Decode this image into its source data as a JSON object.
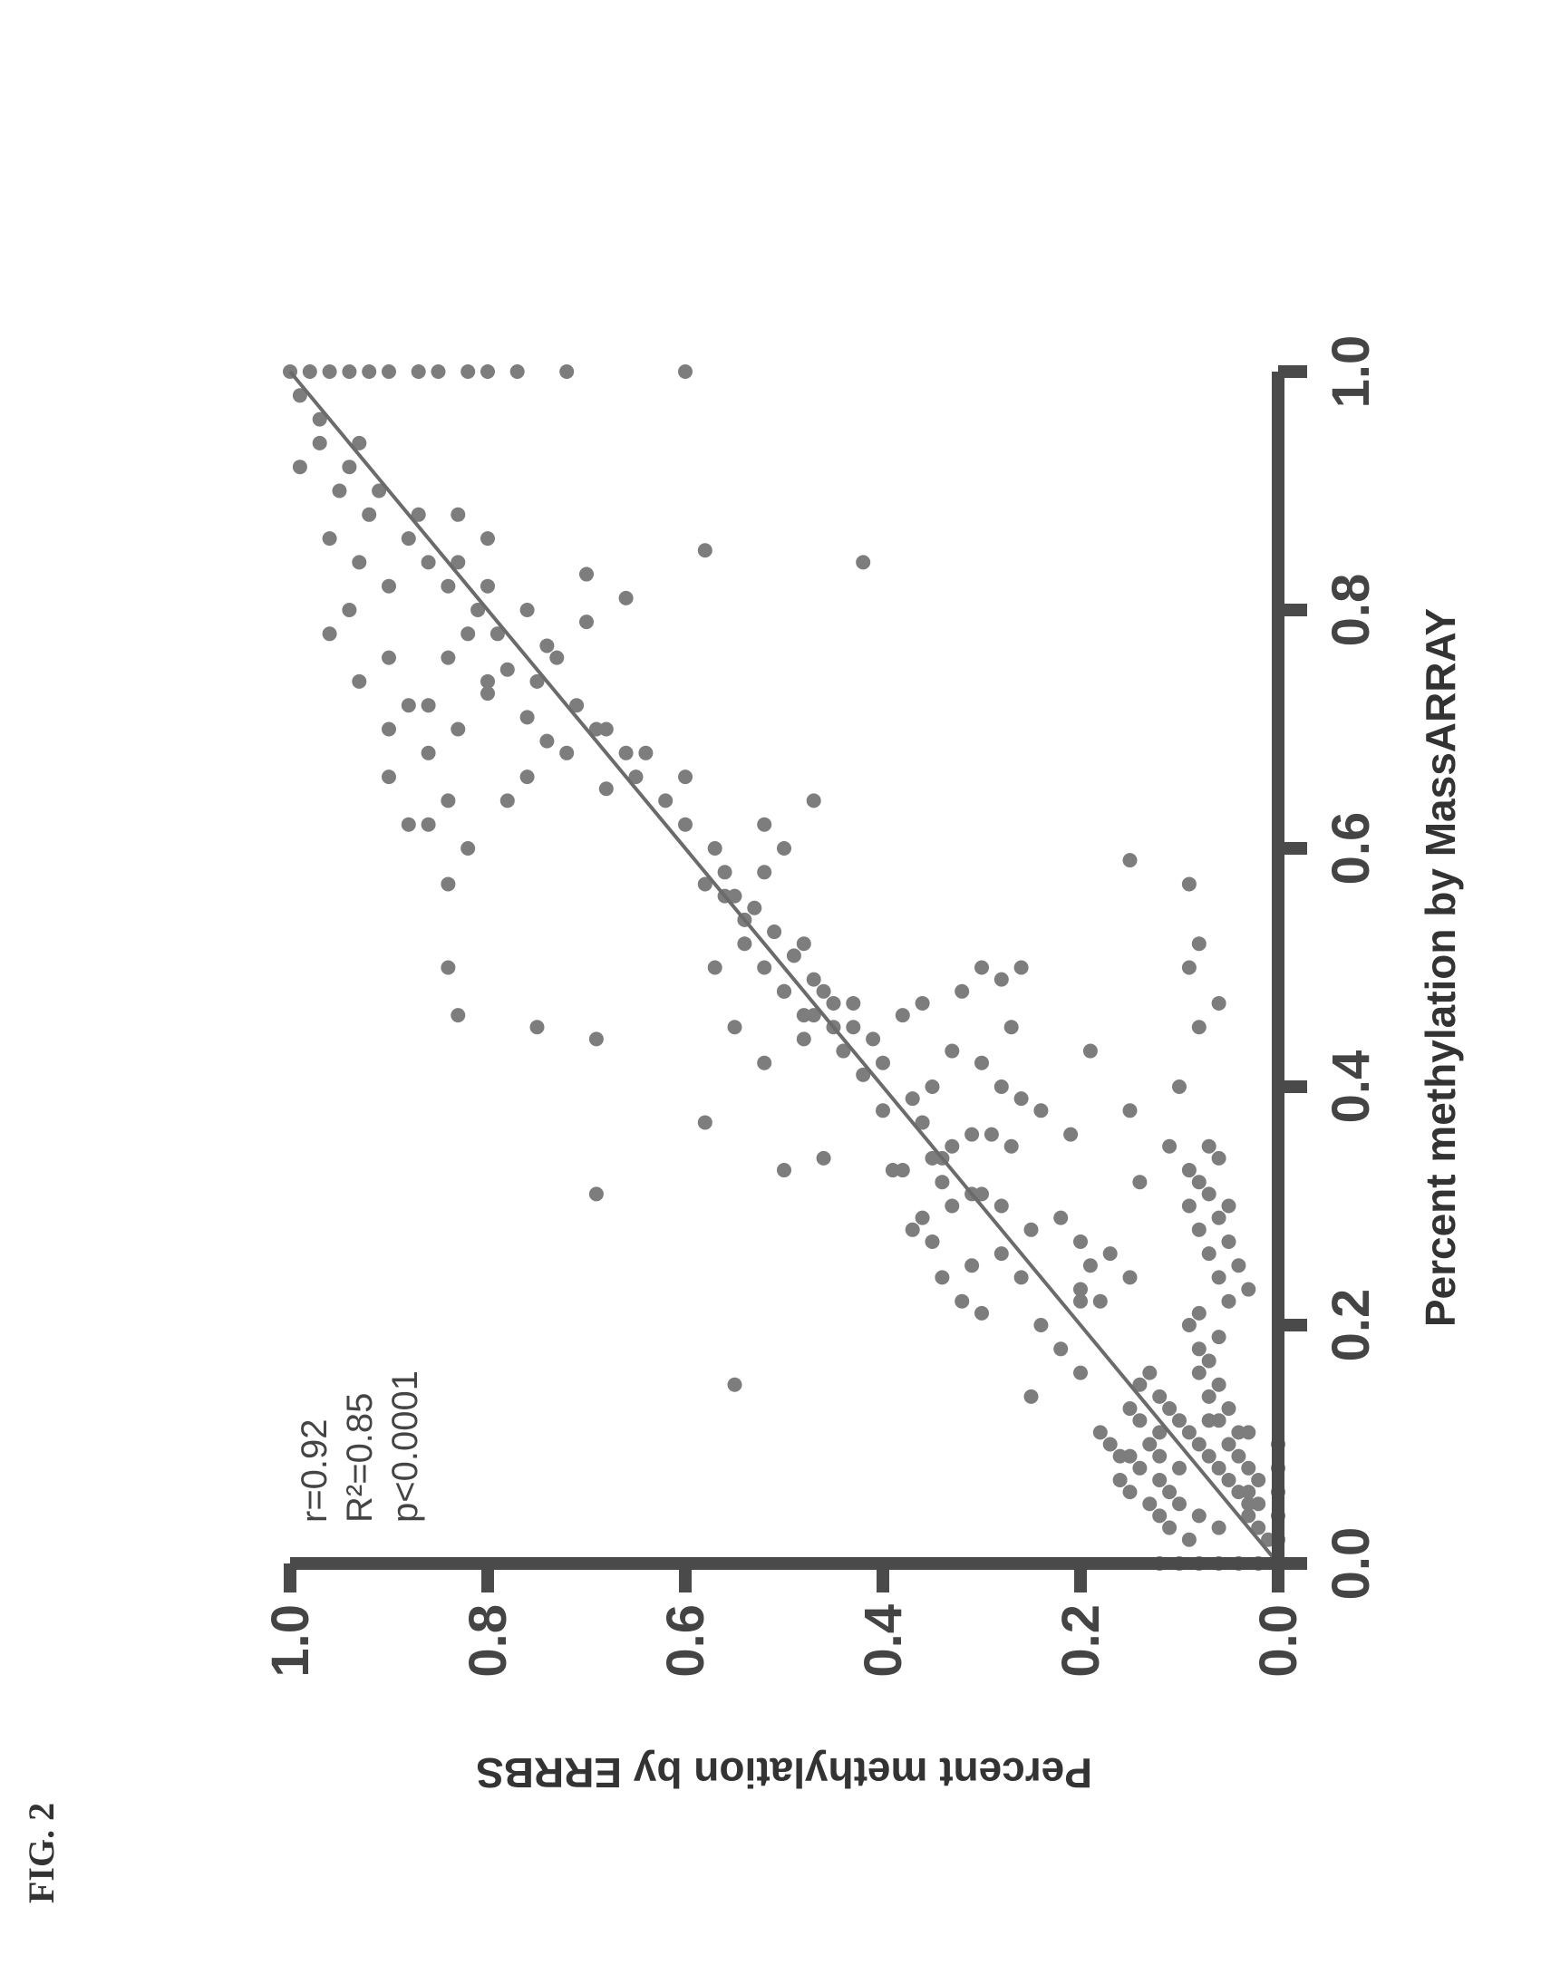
{
  "figure_label": "FIG. 2",
  "chart_data": {
    "type": "scatter",
    "xlabel": "Percent methylation by MassARRAY",
    "ylabel": "Percent methylation by ERRBS",
    "xlim": [
      0.0,
      1.0
    ],
    "ylim": [
      0.0,
      1.0
    ],
    "xticks": [
      "0.0",
      "0.2",
      "0.4",
      "0.6",
      "0.8",
      "1.0"
    ],
    "yticks": [
      "0.0",
      "0.2",
      "0.4",
      "0.6",
      "0.8",
      "1.0"
    ],
    "grid": false,
    "annotations": [
      "r=0.92",
      "R²=0.85",
      "p<0.0001"
    ],
    "fit_line": {
      "x": [
        0.0,
        1.0
      ],
      "y": [
        0.0,
        1.0
      ]
    },
    "points": [
      [
        0.02,
        0.01
      ],
      [
        0.03,
        0.02
      ],
      [
        0.04,
        0.03
      ],
      [
        0.05,
        0.03
      ],
      [
        0.06,
        0.04
      ],
      [
        0.07,
        0.05
      ],
      [
        0.08,
        0.06
      ],
      [
        0.09,
        0.07
      ],
      [
        0.03,
        0.06
      ],
      [
        0.04,
        0.08
      ],
      [
        0.05,
        0.1
      ],
      [
        0.06,
        0.11
      ],
      [
        0.07,
        0.12
      ],
      [
        0.08,
        0.1
      ],
      [
        0.09,
        0.12
      ],
      [
        0.1,
        0.13
      ],
      [
        0.11,
        0.12
      ],
      [
        0.12,
        0.14
      ],
      [
        0.13,
        0.15
      ],
      [
        0.1,
        0.08
      ],
      [
        0.11,
        0.09
      ],
      [
        0.12,
        0.1
      ],
      [
        0.13,
        0.11
      ],
      [
        0.14,
        0.12
      ],
      [
        0.15,
        0.14
      ],
      [
        0.16,
        0.13
      ],
      [
        0.02,
        0.09
      ],
      [
        0.03,
        0.11
      ],
      [
        0.04,
        0.12
      ],
      [
        0.05,
        0.13
      ],
      [
        0.06,
        0.15
      ],
      [
        0.07,
        0.16
      ],
      [
        0.08,
        0.14
      ],
      [
        0.09,
        0.16
      ],
      [
        0.1,
        0.17
      ],
      [
        0.11,
        0.18
      ],
      [
        0.05,
        0.02
      ],
      [
        0.06,
        0.03
      ],
      [
        0.07,
        0.02
      ],
      [
        0.08,
        0.03
      ],
      [
        0.09,
        0.04
      ],
      [
        0.1,
        0.05
      ],
      [
        0.11,
        0.04
      ],
      [
        0.12,
        0.06
      ],
      [
        0.13,
        0.05
      ],
      [
        0.14,
        0.07
      ],
      [
        0.15,
        0.06
      ],
      [
        0.16,
        0.08
      ],
      [
        0.17,
        0.07
      ],
      [
        0.18,
        0.08
      ],
      [
        0.19,
        0.06
      ],
      [
        0.2,
        0.09
      ],
      [
        0.21,
        0.08
      ],
      [
        0.22,
        0.05
      ],
      [
        0.23,
        0.03
      ],
      [
        0.24,
        0.06
      ],
      [
        0.25,
        0.04
      ],
      [
        0.26,
        0.07
      ],
      [
        0.27,
        0.05
      ],
      [
        0.28,
        0.08
      ],
      [
        0.29,
        0.06
      ],
      [
        0.3,
        0.05
      ],
      [
        0.31,
        0.07
      ],
      [
        0.32,
        0.08
      ],
      [
        0.33,
        0.09
      ],
      [
        0.34,
        0.06
      ],
      [
        0.35,
        0.07
      ],
      [
        0.14,
        0.25
      ],
      [
        0.16,
        0.2
      ],
      [
        0.18,
        0.22
      ],
      [
        0.2,
        0.24
      ],
      [
        0.22,
        0.2
      ],
      [
        0.24,
        0.26
      ],
      [
        0.26,
        0.28
      ],
      [
        0.21,
        0.3
      ],
      [
        0.22,
        0.32
      ],
      [
        0.24,
        0.34
      ],
      [
        0.25,
        0.31
      ],
      [
        0.27,
        0.35
      ],
      [
        0.28,
        0.37
      ],
      [
        0.29,
        0.36
      ],
      [
        0.3,
        0.33
      ],
      [
        0.31,
        0.3
      ],
      [
        0.32,
        0.34
      ],
      [
        0.33,
        0.38
      ],
      [
        0.34,
        0.35
      ],
      [
        0.35,
        0.33
      ],
      [
        0.36,
        0.31
      ],
      [
        0.37,
        0.36
      ],
      [
        0.38,
        0.4
      ],
      [
        0.39,
        0.37
      ],
      [
        0.4,
        0.35
      ],
      [
        0.41,
        0.42
      ],
      [
        0.42,
        0.4
      ],
      [
        0.43,
        0.44
      ],
      [
        0.44,
        0.41
      ],
      [
        0.45,
        0.43
      ],
      [
        0.46,
        0.48
      ],
      [
        0.47,
        0.45
      ],
      [
        0.48,
        0.5
      ],
      [
        0.49,
        0.47
      ],
      [
        0.5,
        0.52
      ],
      [
        0.51,
        0.49
      ],
      [
        0.52,
        0.54
      ],
      [
        0.53,
        0.51
      ],
      [
        0.55,
        0.53
      ],
      [
        0.56,
        0.55
      ],
      [
        0.57,
        0.58
      ],
      [
        0.58,
        0.56
      ],
      [
        0.6,
        0.57
      ],
      [
        0.62,
        0.6
      ],
      [
        0.64,
        0.62
      ],
      [
        0.66,
        0.65
      ],
      [
        0.68,
        0.66
      ],
      [
        0.7,
        0.69
      ],
      [
        0.72,
        0.71
      ],
      [
        0.74,
        0.75
      ],
      [
        0.76,
        0.73
      ],
      [
        0.78,
        0.79
      ],
      [
        0.8,
        0.81
      ],
      [
        0.82,
        0.84
      ],
      [
        0.84,
        0.83
      ],
      [
        0.86,
        0.88
      ],
      [
        0.88,
        0.87
      ],
      [
        0.9,
        0.91
      ],
      [
        0.92,
        0.94
      ],
      [
        0.94,
        0.93
      ],
      [
        0.96,
        0.97
      ],
      [
        0.98,
        0.99
      ],
      [
        1.0,
        1.0
      ],
      [
        1.0,
        0.98
      ],
      [
        1.0,
        0.96
      ],
      [
        1.0,
        0.94
      ],
      [
        1.0,
        0.92
      ],
      [
        1.0,
        0.9
      ],
      [
        1.0,
        0.87
      ],
      [
        1.0,
        0.85
      ],
      [
        1.0,
        0.82
      ],
      [
        1.0,
        0.8
      ],
      [
        1.0,
        0.77
      ],
      [
        1.0,
        0.72
      ],
      [
        1.0,
        0.6
      ],
      [
        0.88,
        0.83
      ],
      [
        0.86,
        0.8
      ],
      [
        0.84,
        0.86
      ],
      [
        0.82,
        0.8
      ],
      [
        0.8,
        0.76
      ],
      [
        0.78,
        0.82
      ],
      [
        0.76,
        0.84
      ],
      [
        0.74,
        0.8
      ],
      [
        0.72,
        0.86
      ],
      [
        0.7,
        0.83
      ],
      [
        0.92,
        0.99
      ],
      [
        0.94,
        0.97
      ],
      [
        0.9,
        0.95
      ],
      [
        0.88,
        0.92
      ],
      [
        0.86,
        0.96
      ],
      [
        0.84,
        0.93
      ],
      [
        0.82,
        0.9
      ],
      [
        0.8,
        0.94
      ],
      [
        0.78,
        0.96
      ],
      [
        0.76,
        0.9
      ],
      [
        0.74,
        0.93
      ],
      [
        0.72,
        0.88
      ],
      [
        0.7,
        0.9
      ],
      [
        0.68,
        0.86
      ],
      [
        0.66,
        0.9
      ],
      [
        0.64,
        0.84
      ],
      [
        0.62,
        0.88
      ],
      [
        0.6,
        0.82
      ],
      [
        0.62,
        0.86
      ],
      [
        0.64,
        0.78
      ],
      [
        0.66,
        0.76
      ],
      [
        0.68,
        0.72
      ],
      [
        0.7,
        0.68
      ],
      [
        0.68,
        0.64
      ],
      [
        0.66,
        0.6
      ],
      [
        0.65,
        0.68
      ],
      [
        0.69,
        0.74
      ],
      [
        0.71,
        0.76
      ],
      [
        0.73,
        0.8
      ],
      [
        0.75,
        0.78
      ],
      [
        0.77,
        0.74
      ],
      [
        0.79,
        0.7
      ],
      [
        0.81,
        0.66
      ],
      [
        0.83,
        0.7
      ],
      [
        0.85,
        0.58
      ],
      [
        0.84,
        0.42
      ],
      [
        0.57,
        0.84
      ],
      [
        0.5,
        0.84
      ],
      [
        0.46,
        0.83
      ],
      [
        0.45,
        0.75
      ],
      [
        0.44,
        0.69
      ],
      [
        0.31,
        0.69
      ],
      [
        0.33,
        0.5
      ],
      [
        0.34,
        0.46
      ],
      [
        0.37,
        0.58
      ],
      [
        0.42,
        0.52
      ],
      [
        0.45,
        0.55
      ],
      [
        0.48,
        0.5
      ],
      [
        0.5,
        0.57
      ],
      [
        0.52,
        0.48
      ],
      [
        0.54,
        0.54
      ],
      [
        0.56,
        0.56
      ],
      [
        0.58,
        0.52
      ],
      [
        0.6,
        0.5
      ],
      [
        0.62,
        0.52
      ],
      [
        0.64,
        0.47
      ],
      [
        0.44,
        0.48
      ],
      [
        0.45,
        0.45
      ],
      [
        0.46,
        0.47
      ],
      [
        0.47,
        0.43
      ],
      [
        0.48,
        0.46
      ],
      [
        0.46,
        0.38
      ],
      [
        0.47,
        0.36
      ],
      [
        0.48,
        0.32
      ],
      [
        0.5,
        0.3
      ],
      [
        0.49,
        0.28
      ],
      [
        0.5,
        0.26
      ],
      [
        0.45,
        0.27
      ],
      [
        0.43,
        0.33
      ],
      [
        0.42,
        0.3
      ],
      [
        0.4,
        0.28
      ],
      [
        0.39,
        0.26
      ],
      [
        0.38,
        0.24
      ],
      [
        0.36,
        0.29
      ],
      [
        0.35,
        0.27
      ],
      [
        0.34,
        0.34
      ],
      [
        0.33,
        0.39
      ],
      [
        0.31,
        0.31
      ],
      [
        0.3,
        0.28
      ],
      [
        0.29,
        0.22
      ],
      [
        0.28,
        0.25
      ],
      [
        0.27,
        0.2
      ],
      [
        0.26,
        0.17
      ],
      [
        0.25,
        0.19
      ],
      [
        0.24,
        0.15
      ],
      [
        0.23,
        0.2
      ],
      [
        0.22,
        0.18
      ],
      [
        0.35,
        0.11
      ],
      [
        0.4,
        0.1
      ],
      [
        0.43,
        0.19
      ],
      [
        0.45,
        0.08
      ],
      [
        0.47,
        0.06
      ],
      [
        0.5,
        0.09
      ],
      [
        0.52,
        0.08
      ],
      [
        0.57,
        0.09
      ],
      [
        0.59,
        0.15
      ],
      [
        0.38,
        0.15
      ],
      [
        0.36,
        0.21
      ],
      [
        0.32,
        0.14
      ],
      [
        0.3,
        0.09
      ],
      [
        0.15,
        0.55
      ],
      [
        0.09,
        0.15
      ],
      [
        0.12,
        0.07
      ],
      [
        0.11,
        0.03
      ],
      [
        0.0,
        0.0
      ],
      [
        0.0,
        0.02
      ],
      [
        0.0,
        0.04
      ],
      [
        0.0,
        0.06
      ],
      [
        0.0,
        0.08
      ],
      [
        0.0,
        0.1
      ],
      [
        0.0,
        0.12
      ],
      [
        0.02,
        0.0
      ],
      [
        0.04,
        0.0
      ],
      [
        0.06,
        0.0
      ],
      [
        0.08,
        0.0
      ],
      [
        0.1,
        0.0
      ]
    ]
  }
}
